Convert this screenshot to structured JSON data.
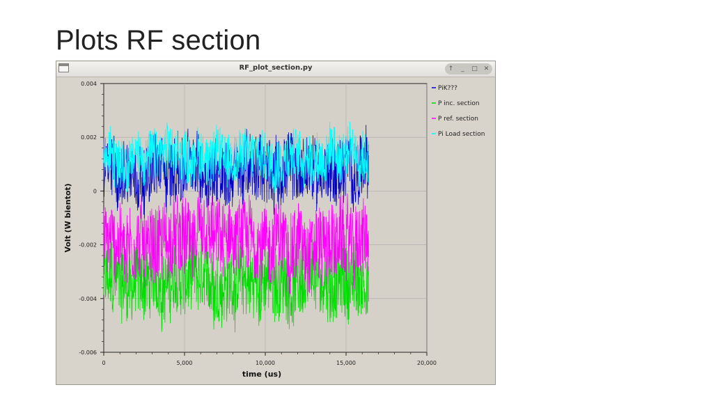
{
  "slide": {
    "title": "Plots RF section"
  },
  "window": {
    "title": "RF_plot_section.py",
    "controls": [
      "shade-icon",
      "minimize-icon",
      "maximize-icon",
      "close-icon"
    ]
  },
  "chart_data": {
    "type": "line",
    "xlabel": "time (us)",
    "ylabel": "Volt (W bientot)",
    "xlim": [
      0,
      20000
    ],
    "ylim": [
      -0.006,
      0.004
    ],
    "x_ticks": [
      "0",
      "5,000",
      "10,000",
      "15,000",
      "20,000"
    ],
    "y_ticks": [
      "0.004",
      "0.002",
      "0",
      "-0.002",
      "-0.004",
      "-0.006"
    ],
    "x_data_range": [
      0,
      16400
    ],
    "grid": true,
    "legend_position": "right",
    "series": [
      {
        "name": "PiK???",
        "color": "#0000cc",
        "center": 0.0004,
        "band": [
          -0.0005,
          0.0021
        ]
      },
      {
        "name": "P inc. section",
        "color": "#00dd00",
        "center": -0.0032,
        "band": [
          -0.0048,
          -0.002
        ]
      },
      {
        "name": "P ref. section",
        "color": "#ff00ff",
        "center": -0.0018,
        "band": [
          -0.0034,
          -0.0004
        ]
      },
      {
        "name": "Pi Load section",
        "color": "#00ffff",
        "center": 0.0012,
        "band": [
          0.0003,
          0.0023
        ]
      }
    ]
  }
}
